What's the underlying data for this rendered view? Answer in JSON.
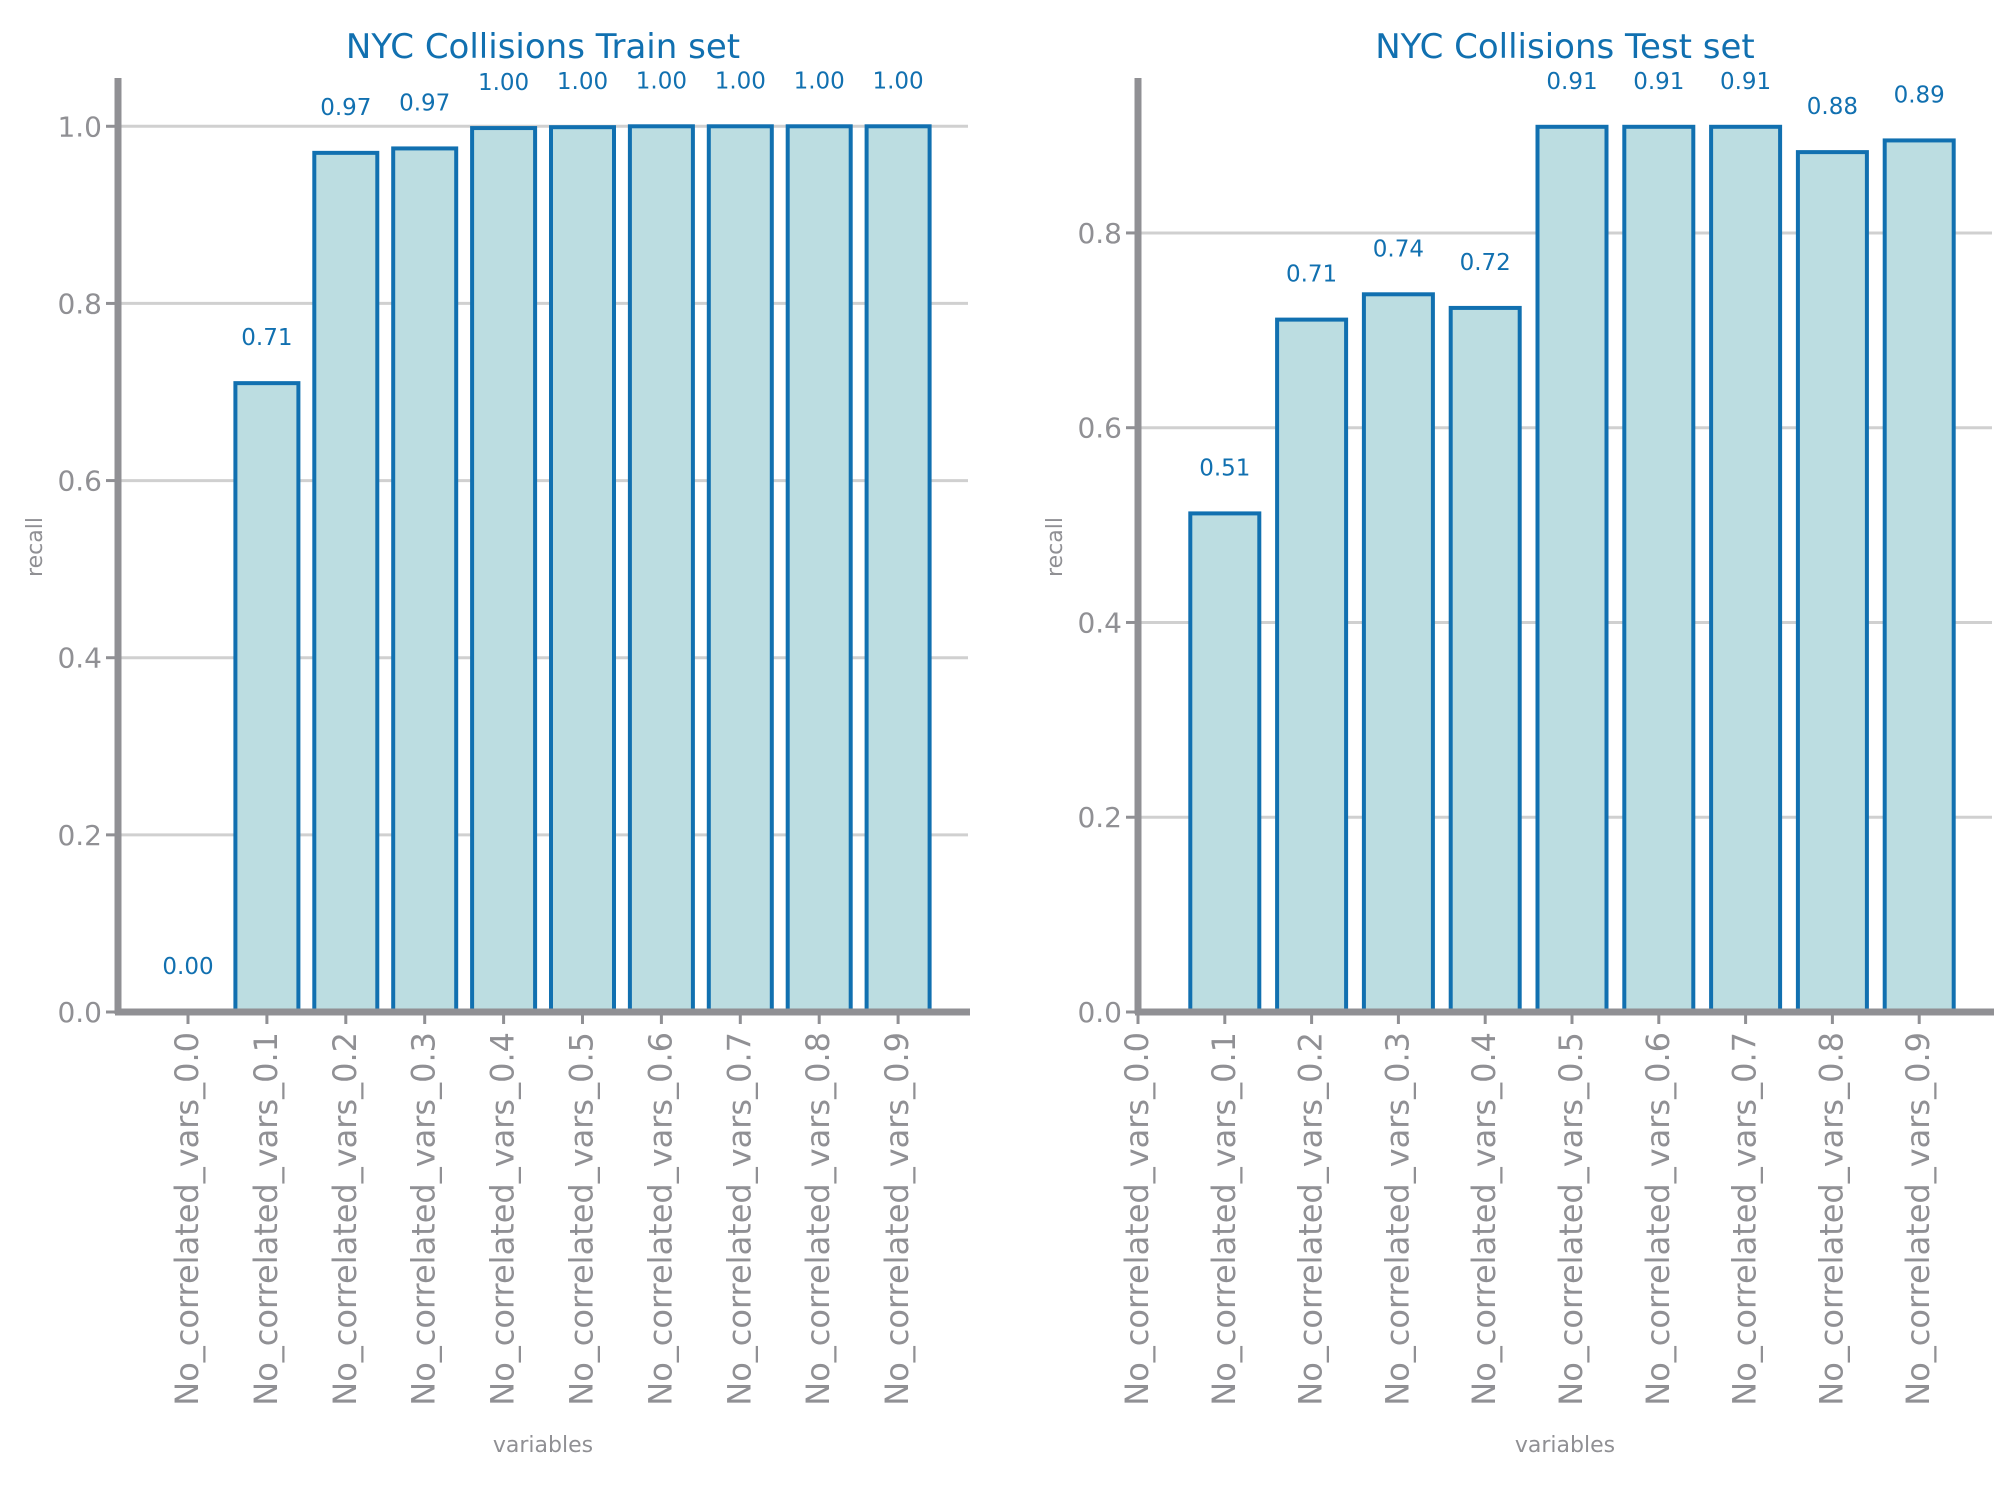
{
  "chart_data": [
    {
      "type": "bar",
      "title": "NYC Collisions Train set",
      "xlabel": "variables",
      "ylabel": "recall",
      "ylim": [
        0,
        1.05
      ],
      "yticks": [
        "0.0",
        "0.2",
        "0.4",
        "0.6",
        "0.8",
        "1.0"
      ],
      "ytick_values": [
        0,
        0.2,
        0.4,
        0.6,
        0.8,
        1.0
      ],
      "grid": true,
      "categories": [
        "No_correlated_vars_0.0",
        "No_correlated_vars_0.1",
        "No_correlated_vars_0.2",
        "No_correlated_vars_0.3",
        "No_correlated_vars_0.4",
        "No_correlated_vars_0.5",
        "No_correlated_vars_0.6",
        "No_correlated_vars_0.7",
        "No_correlated_vars_0.8",
        "No_correlated_vars_0.9"
      ],
      "values": [
        0.0,
        0.71,
        0.97,
        0.975,
        0.998,
        0.999,
        1.0,
        1.0,
        1.0,
        1.0
      ],
      "value_labels": [
        "0.00",
        "0.71",
        "0.97",
        "0.97",
        "1.00",
        "1.00",
        "1.00",
        "1.00",
        "1.00",
        "1.00"
      ]
    },
    {
      "type": "bar",
      "title": "NYC Collisions Test set",
      "xlabel": "variables",
      "ylabel": "recall",
      "ylim": [
        0,
        0.955
      ],
      "yticks": [
        "0.0",
        "0.2",
        "0.4",
        "0.6",
        "0.8"
      ],
      "ytick_values": [
        0,
        0.2,
        0.4,
        0.6,
        0.8
      ],
      "grid": true,
      "categories": [
        "No_correlated_vars_0.0",
        "No_correlated_vars_0.1",
        "No_correlated_vars_0.2",
        "No_correlated_vars_0.3",
        "No_correlated_vars_0.4",
        "No_correlated_vars_0.5",
        "No_correlated_vars_0.6",
        "No_correlated_vars_0.7",
        "No_correlated_vars_0.8",
        "No_correlated_vars_0.9"
      ],
      "values": [
        0.0,
        0.512,
        0.711,
        0.737,
        0.723,
        0.909,
        0.909,
        0.909,
        0.883,
        0.895
      ],
      "value_labels": [
        "",
        "0.51",
        "0.71",
        "0.74",
        "0.72",
        "0.91",
        "0.91",
        "0.91",
        "0.88",
        "0.89"
      ]
    }
  ],
  "colors": {
    "bar_fill": "#bcdde1",
    "bar_edge": "#1170b0",
    "label_text": "#1170b0",
    "title_text": "#1170b0",
    "axis": "#909094",
    "grid": "#d0d0d0",
    "tick_text": "#909094"
  }
}
